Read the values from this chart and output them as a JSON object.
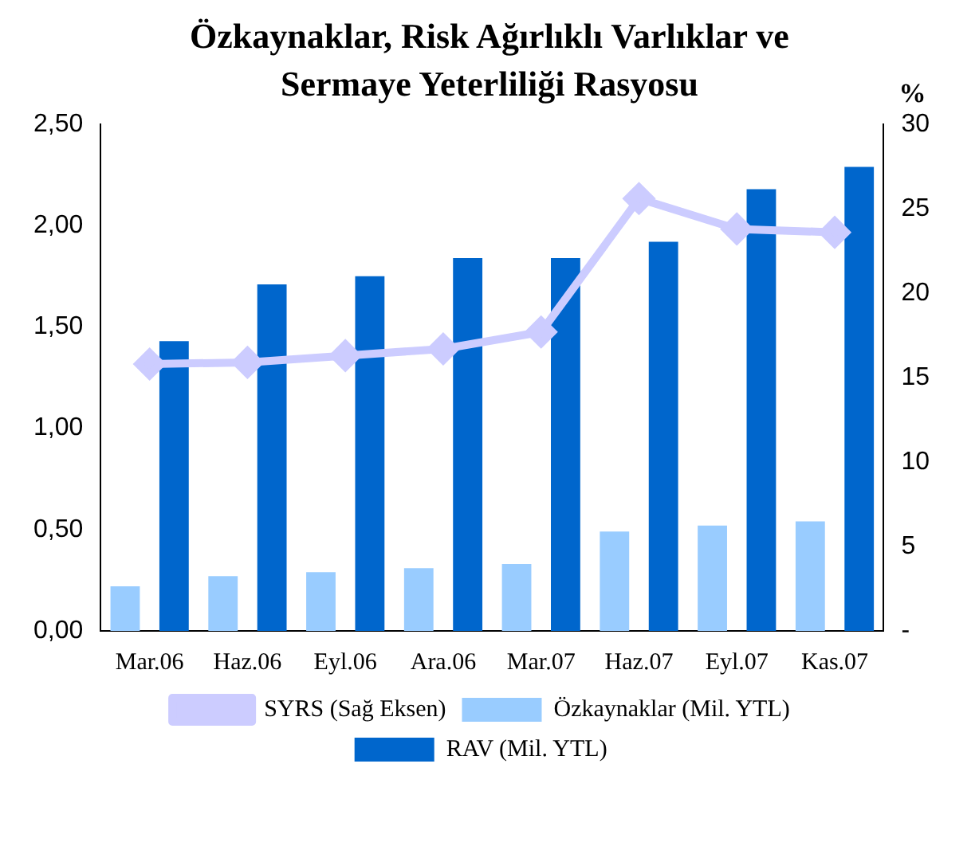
{
  "chart_data": {
    "type": "bar",
    "title": "Özkaynaklar, Risk Ağırlıklı Varlıklar ve Sermaye Yeterliliği Rasyosu",
    "y2label": "%",
    "categories": [
      "Mar.06",
      "Haz.06",
      "Eyl.06",
      "Ara.06",
      "Mar.07",
      "Haz.07",
      "Eyl.07",
      "Kas.07"
    ],
    "series": [
      {
        "name": "Özkaynaklar (Mil. YTL)",
        "color": "#99ccff",
        "values": [
          0.22,
          0.27,
          0.29,
          0.31,
          0.33,
          0.49,
          0.52,
          0.54
        ]
      },
      {
        "name": "RAV (Mil. YTL)",
        "color": "#0066cc",
        "values": [
          1.43,
          1.71,
          1.75,
          1.84,
          1.84,
          1.92,
          2.18,
          2.29
        ]
      },
      {
        "name": "SYRS (Sağ Eksen)",
        "type": "line",
        "axis": "y2",
        "color": "#ccccff",
        "marker": "diamond",
        "values": [
          15.8,
          15.9,
          16.3,
          16.7,
          17.7,
          25.6,
          23.8,
          23.6
        ]
      }
    ],
    "ylim": [
      0,
      2.5
    ],
    "yticks": [
      {
        "value": 0,
        "label": "0,00"
      },
      {
        "value": 0.5,
        "label": "0,50"
      },
      {
        "value": 1,
        "label": "1,00"
      },
      {
        "value": 1.5,
        "label": "1,50"
      },
      {
        "value": 2,
        "label": "2,00"
      },
      {
        "value": 2.5,
        "label": "2,50"
      }
    ],
    "y2lim": [
      0,
      30
    ],
    "y2ticks": [
      {
        "value": 0,
        "label": "-"
      },
      5,
      10,
      15,
      20,
      25,
      30
    ],
    "grid": false,
    "legend": "bottom"
  }
}
